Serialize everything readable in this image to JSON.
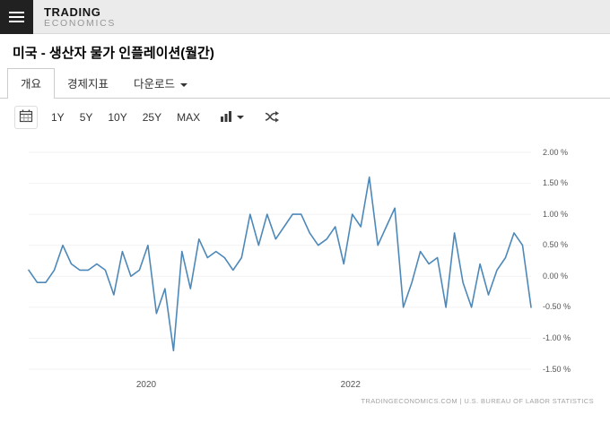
{
  "header": {
    "logo_top": "TRADING",
    "logo_bottom": "ECONOMICS"
  },
  "page": {
    "title": "미국 - 생산자 물가 인플레이션(월간)"
  },
  "tabs": [
    {
      "label": "개요"
    },
    {
      "label": "경제지표"
    },
    {
      "label": "다운로드"
    }
  ],
  "toolbar": {
    "ranges": [
      "1Y",
      "5Y",
      "10Y",
      "25Y",
      "MAX"
    ]
  },
  "chart_data": {
    "type": "line",
    "line_color": "#4d88b8",
    "ylim": [
      -1.5,
      2.0
    ],
    "y_ticks": [
      "2.00 %",
      "1.50 %",
      "1.00 %",
      "0.50 %",
      "0.00 %",
      "-0.50 %",
      "-1.00 %",
      "-1.50 %"
    ],
    "x_tick_labels": [
      {
        "label": "2020",
        "index": 14
      },
      {
        "label": "2022",
        "index": 38
      }
    ],
    "x": [
      "2018-11",
      "2018-12",
      "2019-01",
      "2019-02",
      "2019-03",
      "2019-04",
      "2019-05",
      "2019-06",
      "2019-07",
      "2019-08",
      "2019-09",
      "2019-10",
      "2019-11",
      "2019-12",
      "2020-01",
      "2020-02",
      "2020-03",
      "2020-04",
      "2020-05",
      "2020-06",
      "2020-07",
      "2020-08",
      "2020-09",
      "2020-10",
      "2020-11",
      "2020-12",
      "2021-01",
      "2021-02",
      "2021-03",
      "2021-04",
      "2021-05",
      "2021-06",
      "2021-07",
      "2021-08",
      "2021-09",
      "2021-10",
      "2021-11",
      "2021-12",
      "2022-01",
      "2022-02",
      "2022-03",
      "2022-04",
      "2022-05",
      "2022-06",
      "2022-07",
      "2022-08",
      "2022-09",
      "2022-10",
      "2022-11",
      "2022-12",
      "2023-01",
      "2023-02",
      "2023-03",
      "2023-04",
      "2023-05",
      "2023-06",
      "2023-07",
      "2023-08",
      "2023-09",
      "2023-10"
    ],
    "values": [
      0.1,
      -0.1,
      -0.1,
      0.1,
      0.5,
      0.2,
      0.1,
      0.1,
      0.2,
      0.1,
      -0.3,
      0.4,
      0.0,
      0.1,
      0.5,
      -0.6,
      -0.2,
      -1.2,
      0.4,
      -0.2,
      0.6,
      0.3,
      0.4,
      0.3,
      0.1,
      0.3,
      1.0,
      0.5,
      1.0,
      0.6,
      0.8,
      1.0,
      1.0,
      0.7,
      0.5,
      0.6,
      0.8,
      0.2,
      1.0,
      0.8,
      1.6,
      0.5,
      0.8,
      1.1,
      -0.5,
      -0.1,
      0.4,
      0.2,
      0.3,
      -0.5,
      0.7,
      -0.1,
      -0.5,
      0.2,
      -0.3,
      0.1,
      0.3,
      0.7,
      0.5,
      -0.5
    ],
    "grid": "faint-horizontal",
    "legend": "none",
    "source_note": "TRADINGECONOMICS.COM | U.S. BUREAU OF LABOR STATISTICS"
  }
}
